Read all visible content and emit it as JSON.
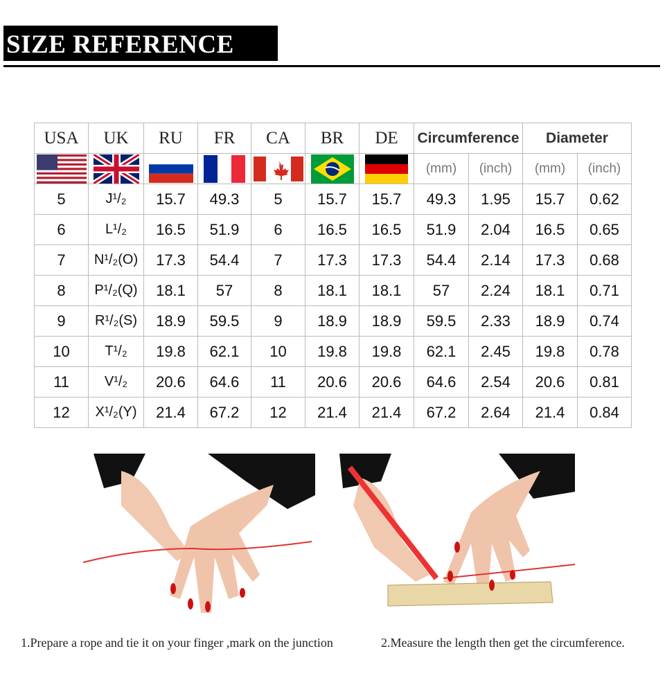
{
  "header": {
    "title": "SIZE REFERENCE"
  },
  "table": {
    "headers": [
      "USA",
      "UK",
      "RU",
      "FR",
      "CA",
      "BR",
      "DE",
      "Circumference",
      "Diameter"
    ],
    "units": [
      "(mm)",
      "(inch)",
      "(mm)",
      "(inch)"
    ],
    "rows": [
      [
        5,
        "J¹/₂",
        15.7,
        49.3,
        5,
        15.7,
        15.7,
        49.3,
        1.95,
        15.7,
        0.62
      ],
      [
        6,
        "L¹/₂",
        16.5,
        51.9,
        6,
        16.5,
        16.5,
        51.9,
        2.04,
        16.5,
        0.65
      ],
      [
        7,
        "N¹/₂(O)",
        17.3,
        54.4,
        7,
        17.3,
        17.3,
        54.4,
        2.14,
        17.3,
        0.68
      ],
      [
        8,
        "P¹/₂(Q)",
        18.1,
        57,
        8,
        18.1,
        18.1,
        57,
        2.24,
        18.1,
        0.71
      ],
      [
        9,
        "R¹/₂(S)",
        18.9,
        59.5,
        9,
        18.9,
        18.9,
        59.5,
        2.33,
        18.9,
        0.74
      ],
      [
        10,
        "T¹/₂",
        19.8,
        62.1,
        10,
        19.8,
        19.8,
        62.1,
        2.45,
        19.8,
        0.78
      ],
      [
        11,
        "V¹/₂",
        20.6,
        64.6,
        11,
        20.6,
        20.6,
        64.6,
        2.54,
        20.6,
        0.81
      ],
      [
        12,
        "X¹/₂(Y)",
        21.4,
        67.2,
        12,
        21.4,
        21.4,
        67.2,
        2.64,
        21.4,
        0.84
      ]
    ]
  },
  "captions": [
    "1.Prepare a rope and tie it on your finger ,mark on the junction",
    "2.Measure the length then get the circumference."
  ]
}
